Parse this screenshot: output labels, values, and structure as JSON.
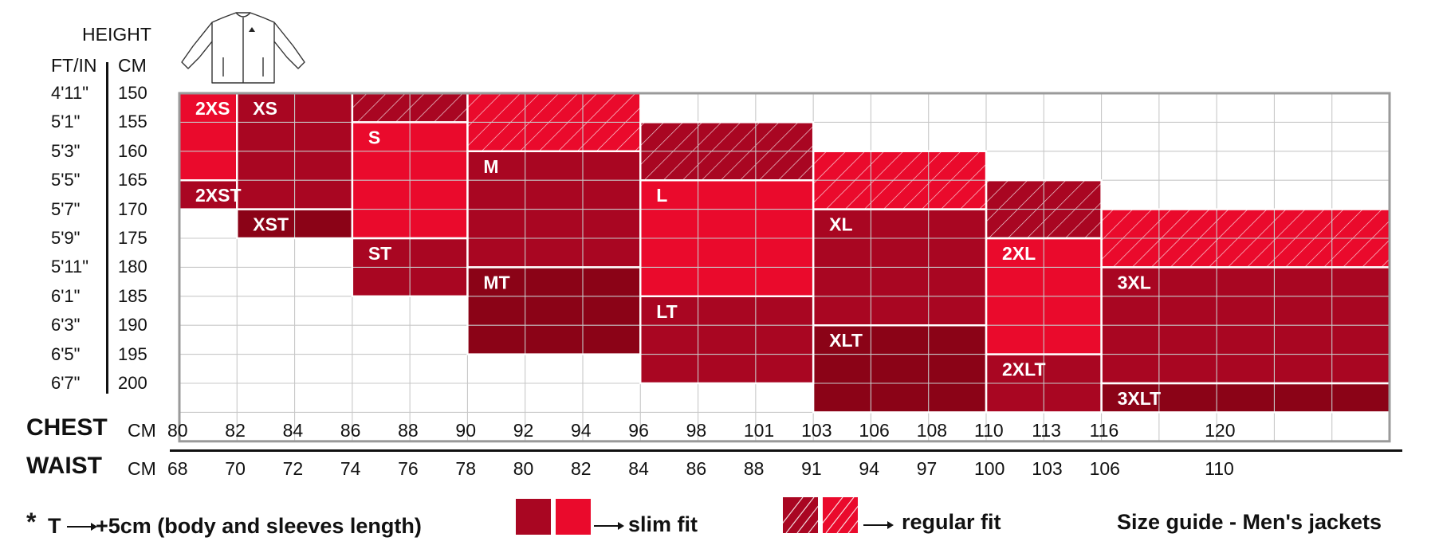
{
  "header": {
    "height_label": "HEIGHT",
    "ftin_label": "FT/IN",
    "cm_label": "CM"
  },
  "colors": {
    "dark_red": "#a90622",
    "darker_red": "#8b0317",
    "bright_red": "#ea0a2c",
    "grid": "#c8c8c8",
    "frame": "#9a9a9a"
  },
  "icon": "jacket-icon",
  "chart_data": {
    "type": "heatmap",
    "title": "Size guide - Men's jackets",
    "y_heights_ftin": [
      "4'11\"",
      "5'1\"",
      "5'3\"",
      "5'5\"",
      "5'7\"",
      "5'9\"",
      "5'11\"",
      "6'1\"",
      "6'3\"",
      "6'5\"",
      "6'7\""
    ],
    "y_heights_cm": [
      "150",
      "155",
      "160",
      "165",
      "170",
      "175",
      "180",
      "185",
      "190",
      "195",
      "200"
    ],
    "chest": {
      "label": "CHEST",
      "unit": "CM",
      "ticks": [
        "80",
        "82",
        "84",
        "86",
        "88",
        "90",
        "92",
        "94",
        "96",
        "98",
        "101",
        "103",
        "106",
        "108",
        "110",
        "113",
        "116",
        "120"
      ]
    },
    "waist": {
      "label": "WAIST",
      "unit": "CM",
      "ticks": [
        "68",
        "70",
        "72",
        "74",
        "76",
        "78",
        "80",
        "82",
        "84",
        "86",
        "88",
        "91",
        "94",
        "97",
        "100",
        "103",
        "106",
        "110"
      ]
    },
    "sizes": [
      {
        "label": "2XS",
        "chest": [
          80,
          82
        ],
        "height_cm": [
          150,
          165
        ],
        "fit": "slim",
        "shade": "bright"
      },
      {
        "label": "2XST",
        "chest": [
          80,
          82
        ],
        "height_cm": [
          165,
          170
        ],
        "fit": "slim",
        "shade": "dark"
      },
      {
        "label": "XS",
        "chest": [
          82,
          86
        ],
        "height_cm": [
          150,
          170
        ],
        "fit": "slim",
        "shade": "dark"
      },
      {
        "label": "XST",
        "chest": [
          82,
          86
        ],
        "height_cm": [
          170,
          175
        ],
        "fit": "slim",
        "shade": "darker"
      },
      {
        "label": "",
        "chest": [
          86,
          90
        ],
        "height_cm": [
          150,
          155
        ],
        "fit": "regular",
        "shade": "dark"
      },
      {
        "label": "S",
        "chest": [
          86,
          90
        ],
        "height_cm": [
          155,
          175
        ],
        "fit": "slim",
        "shade": "bright"
      },
      {
        "label": "ST",
        "chest": [
          86,
          90
        ],
        "height_cm": [
          175,
          185
        ],
        "fit": "slim",
        "shade": "dark"
      },
      {
        "label": "",
        "chest": [
          90,
          96
        ],
        "height_cm": [
          150,
          160
        ],
        "fit": "regular",
        "shade": "bright"
      },
      {
        "label": "M",
        "chest": [
          90,
          96
        ],
        "height_cm": [
          160,
          180
        ],
        "fit": "slim",
        "shade": "dark"
      },
      {
        "label": "MT",
        "chest": [
          90,
          96
        ],
        "height_cm": [
          180,
          195
        ],
        "fit": "slim",
        "shade": "darker"
      },
      {
        "label": "",
        "chest": [
          96,
          103
        ],
        "height_cm": [
          155,
          165
        ],
        "fit": "regular",
        "shade": "dark"
      },
      {
        "label": "L",
        "chest": [
          96,
          103
        ],
        "height_cm": [
          165,
          185
        ],
        "fit": "slim",
        "shade": "bright"
      },
      {
        "label": "LT",
        "chest": [
          96,
          103
        ],
        "height_cm": [
          185,
          200
        ],
        "fit": "slim",
        "shade": "dark"
      },
      {
        "label": "",
        "chest": [
          103,
          110
        ],
        "height_cm": [
          160,
          170
        ],
        "fit": "regular",
        "shade": "bright"
      },
      {
        "label": "XL",
        "chest": [
          103,
          110
        ],
        "height_cm": [
          170,
          190
        ],
        "fit": "slim",
        "shade": "dark"
      },
      {
        "label": "XLT",
        "chest": [
          103,
          110
        ],
        "height_cm": [
          190,
          205
        ],
        "fit": "slim",
        "shade": "darker"
      },
      {
        "label": "",
        "chest": [
          110,
          116
        ],
        "height_cm": [
          165,
          175
        ],
        "fit": "regular",
        "shade": "dark"
      },
      {
        "label": "2XL",
        "chest": [
          110,
          116
        ],
        "height_cm": [
          175,
          195
        ],
        "fit": "slim",
        "shade": "bright"
      },
      {
        "label": "2XLT",
        "chest": [
          110,
          116
        ],
        "height_cm": [
          195,
          205
        ],
        "fit": "slim",
        "shade": "dark"
      },
      {
        "label": "",
        "chest": [
          116,
          120
        ],
        "height_cm": [
          170,
          180
        ],
        "fit": "regular",
        "shade": "bright"
      },
      {
        "label": "3XL",
        "chest": [
          116,
          120
        ],
        "height_cm": [
          180,
          200
        ],
        "fit": "slim",
        "shade": "dark"
      },
      {
        "label": "3XLT",
        "chest": [
          116,
          120
        ],
        "height_cm": [
          200,
          205
        ],
        "fit": "slim",
        "shade": "darker"
      }
    ]
  },
  "footer": {
    "note_star": "*",
    "note_t": "T",
    "note_text": "+5cm (body and sleeves length)",
    "slim_fit": "slim fit",
    "regular_fit": "regular fit",
    "title": "Size guide - Men's jackets"
  }
}
